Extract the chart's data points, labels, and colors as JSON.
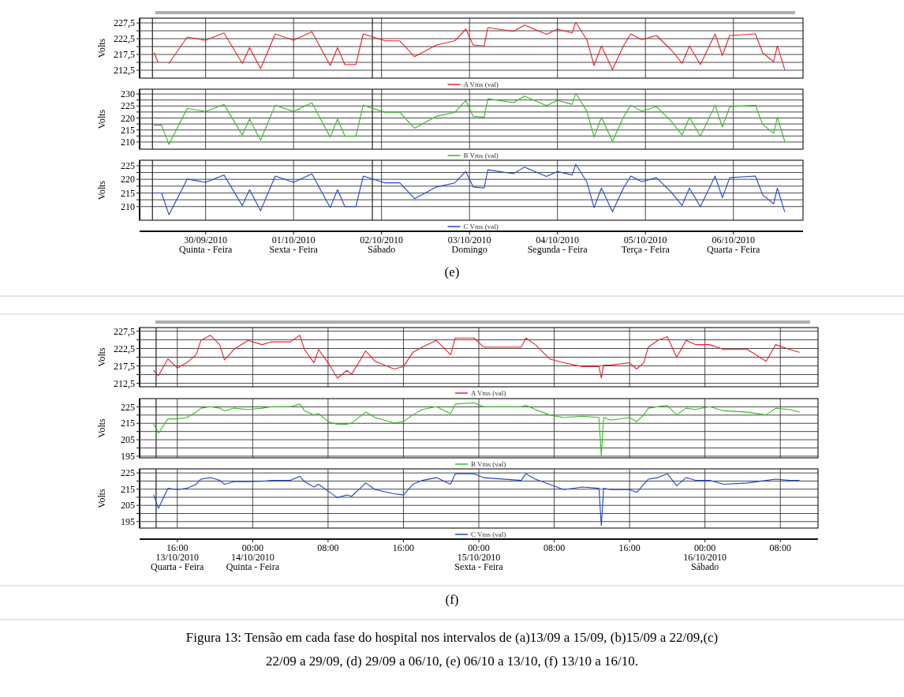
{
  "chart_data": [
    {
      "type": "line",
      "ylabel": "Volts",
      "grid": true,
      "legend": "bottom",
      "tick_labels": "y",
      "series": [
        {
          "name": "A Vms (val)",
          "color": "#e8202a",
          "x": [
            "2010-09-29T10:00",
            "2010-09-29T11:00",
            "2010-09-29T12:00",
            "2010-09-29T14:00",
            "2010-09-29T19:00",
            "2010-09-30T00:00",
            "2010-09-30T05:00",
            "2010-09-30T10:00",
            "2010-09-30T12:00",
            "2010-09-30T15:00",
            "2010-09-30T19:00",
            "2010-10-01T00:00",
            "2010-10-01T05:00",
            "2010-10-01T10:00",
            "2010-10-01T12:00",
            "2010-10-01T14:00",
            "2010-10-01T17:00",
            "2010-10-01T19:00",
            "2010-10-02T01:00",
            "2010-10-02T05:00",
            "2010-10-02T09:00",
            "2010-10-02T15:00",
            "2010-10-02T20:00",
            "2010-10-02T23:00",
            "2010-10-03T01:00",
            "2010-10-03T04:00",
            "2010-10-03T05:00",
            "2010-10-03T12:00",
            "2010-10-03T15:00",
            "2010-10-03T21:00",
            "2010-10-04T00:00",
            "2010-10-04T04:00",
            "2010-10-04T05:00",
            "2010-10-04T08:00",
            "2010-10-04T10:00",
            "2010-10-04T12:00",
            "2010-10-04T15:00",
            "2010-10-04T18:00",
            "2010-10-04T20:00",
            "2010-10-04T23:00",
            "2010-10-05T03:00",
            "2010-10-05T07:00",
            "2010-10-05T10:00",
            "2010-10-05T12:00",
            "2010-10-05T15:00",
            "2010-10-05T19:00",
            "2010-10-05T21:00",
            "2010-10-05T23:00",
            "2010-10-06T06:00",
            "2010-10-06T08:00",
            "2010-10-06T11:00",
            "2010-10-06T12:00",
            "2010-10-06T14:00"
          ],
          "values": [
            218,
            215,
            null,
            214.7,
            223,
            222,
            224.3,
            214.7,
            219.7,
            213,
            224,
            222,
            224.7,
            214,
            219.7,
            214.3,
            214.3,
            224,
            221.8,
            221.8,
            216.8,
            220.5,
            221.8,
            225.5,
            220.5,
            220.2,
            226,
            224.8,
            226.8,
            223.9,
            225.5,
            224.3,
            227.7,
            222.2,
            214,
            220.2,
            212.7,
            220.2,
            224,
            222.2,
            223.5,
            219,
            214.7,
            220.2,
            214.3,
            224,
            217.2,
            223.5,
            224,
            218,
            215.2,
            220.2,
            212.7
          ]
        }
      ],
      "xlim": [
        "2010-09-29T06:00",
        "2010-10-06T19:00"
      ],
      "xticks": [
        {
          "value": "2010-09-30",
          "label": null
        },
        {
          "value": "2010-10-01",
          "label": null
        },
        {
          "value": "2010-10-02",
          "label": null
        },
        {
          "value": "2010-10-03",
          "label": null
        },
        {
          "value": "2010-10-04",
          "label": null
        },
        {
          "value": "2010-10-05",
          "label": null
        },
        {
          "value": "2010-10-06",
          "label": null
        }
      ],
      "ylim": [
        210,
        229
      ],
      "yticks": [
        {
          "value": 212.5,
          "label": "212,5"
        },
        {
          "value": 215,
          "label": null
        },
        {
          "value": 217.5,
          "label": "217,5"
        },
        {
          "value": 220,
          "label": null
        },
        {
          "value": 222.5,
          "label": "222,5"
        },
        {
          "value": 225,
          "label": null
        },
        {
          "value": 227.5,
          "label": "227,5"
        }
      ],
      "ref_lines": [
        {
          "axis": "x",
          "value": "2010-09-29T09:30",
          "color": "#222222"
        },
        {
          "axis": "x",
          "value": "2010-10-01T21:30",
          "color": "#222222"
        }
      ]
    },
    {
      "type": "line",
      "ylabel": "Volts",
      "grid": true,
      "legend": "bottom",
      "tick_labels": "y",
      "x": [
        "2010-09-29T10:00",
        "2010-09-29T12:00",
        "2010-09-29T14:00",
        "2010-09-29T19:00",
        "2010-09-30T00:00",
        "2010-09-30T05:00",
        "2010-09-30T10:00",
        "2010-09-30T12:00",
        "2010-09-30T15:00",
        "2010-09-30T19:00",
        "2010-10-01T00:00",
        "2010-10-01T05:00",
        "2010-10-01T10:00",
        "2010-10-01T12:00",
        "2010-10-01T14:00",
        "2010-10-01T17:00",
        "2010-10-01T19:00",
        "2010-10-02T01:00",
        "2010-10-02T05:00",
        "2010-10-02T09:00",
        "2010-10-02T15:00",
        "2010-10-02T20:00",
        "2010-10-02T23:00",
        "2010-10-03T01:00",
        "2010-10-03T04:00",
        "2010-10-03T05:00",
        "2010-10-03T12:00",
        "2010-10-03T15:00",
        "2010-10-03T21:00",
        "2010-10-04T00:00",
        "2010-10-04T04:00",
        "2010-10-04T05:00",
        "2010-10-04T08:00",
        "2010-10-04T10:00",
        "2010-10-04T12:00",
        "2010-10-04T15:00",
        "2010-10-04T18:00",
        "2010-10-04T20:00",
        "2010-10-04T23:00",
        "2010-10-05T03:00",
        "2010-10-05T07:00",
        "2010-10-05T10:00",
        "2010-10-05T12:00",
        "2010-10-05T15:00",
        "2010-10-05T19:00",
        "2010-10-05T21:00",
        "2010-10-05T23:00",
        "2010-10-06T06:00",
        "2010-10-06T08:00",
        "2010-10-06T11:00",
        "2010-10-06T12:00",
        "2010-10-06T14:00"
      ],
      "series": [
        {
          "name": "B Vms (val)",
          "color": "#33bb22",
          "values": [
            217,
            217,
            209,
            224,
            222.7,
            225.7,
            212.9,
            219.6,
            210.7,
            225.3,
            222.7,
            226.3,
            212,
            219.6,
            212.4,
            212.4,
            225.3,
            222.4,
            222.4,
            215.7,
            220.7,
            222.4,
            227.3,
            220.7,
            220.3,
            228,
            226.4,
            229.1,
            225.2,
            227.3,
            225.7,
            230.3,
            222.9,
            212,
            220.3,
            210.3,
            220.3,
            225.3,
            222.9,
            224.7,
            218.7,
            212.9,
            220.3,
            212.4,
            225.3,
            216.3,
            224.7,
            225.3,
            217.3,
            213.6,
            220.3,
            210.3
          ]
        }
      ],
      "xlim": [
        "2010-09-29T06:00",
        "2010-10-06T19:00"
      ],
      "xticks": [
        {
          "value": "2010-09-30",
          "label": null
        },
        {
          "value": "2010-10-01",
          "label": null
        },
        {
          "value": "2010-10-02",
          "label": null
        },
        {
          "value": "2010-10-03",
          "label": null
        },
        {
          "value": "2010-10-04",
          "label": null
        },
        {
          "value": "2010-10-05",
          "label": null
        },
        {
          "value": "2010-10-06",
          "label": null
        }
      ],
      "ylim": [
        207,
        232
      ],
      "yticks": [
        210,
        {
          "value": 212.5,
          "label": null
        },
        215,
        {
          "value": 217.5,
          "label": null
        },
        220,
        {
          "value": 222.5,
          "label": null
        },
        225,
        {
          "value": 227.5,
          "label": null
        },
        230
      ],
      "ref_lines": [
        {
          "axis": "x",
          "value": "2010-09-29T09:30",
          "color": "#222222"
        },
        {
          "axis": "x",
          "value": "2010-10-01T21:30",
          "color": "#222222"
        }
      ]
    },
    {
      "type": "line",
      "ylabel": "Volts",
      "grid": true,
      "legend": "bottom",
      "x": [
        "2010-09-29T10:00",
        "2010-09-29T12:00",
        "2010-09-29T14:00",
        "2010-09-29T19:00",
        "2010-09-30T00:00",
        "2010-09-30T05:00",
        "2010-09-30T10:00",
        "2010-09-30T12:00",
        "2010-09-30T15:00",
        "2010-09-30T19:00",
        "2010-10-01T00:00",
        "2010-10-01T05:00",
        "2010-10-01T10:00",
        "2010-10-01T12:00",
        "2010-10-01T14:00",
        "2010-10-01T17:00",
        "2010-10-01T19:00",
        "2010-10-02T01:00",
        "2010-10-02T05:00",
        "2010-10-02T09:00",
        "2010-10-02T15:00",
        "2010-10-02T20:00",
        "2010-10-02T23:00",
        "2010-10-03T01:00",
        "2010-10-03T04:00",
        "2010-10-03T05:00",
        "2010-10-03T12:00",
        "2010-10-03T15:00",
        "2010-10-03T21:00",
        "2010-10-04T00:00",
        "2010-10-04T04:00",
        "2010-10-04T05:00",
        "2010-10-04T08:00",
        "2010-10-04T10:00",
        "2010-10-04T12:00",
        "2010-10-04T15:00",
        "2010-10-04T18:00",
        "2010-10-04T20:00",
        "2010-10-04T23:00",
        "2010-10-05T03:00",
        "2010-10-05T07:00",
        "2010-10-05T10:00",
        "2010-10-05T12:00",
        "2010-10-05T15:00",
        "2010-10-05T19:00",
        "2010-10-05T21:00",
        "2010-10-05T23:00",
        "2010-10-06T06:00",
        "2010-10-06T08:00",
        "2010-10-06T11:00",
        "2010-10-06T12:00",
        "2010-10-06T14:00"
      ],
      "series": [
        {
          "name": "C Vms (val)",
          "color": "#2244cc",
          "values": [
            215,
            215,
            207,
            220.1,
            218.9,
            221.6,
            210.4,
            216.2,
            208.5,
            221.2,
            218.9,
            222,
            209.6,
            216.2,
            210,
            210,
            221.2,
            218.7,
            218.7,
            212.9,
            217.2,
            218.7,
            222.9,
            217.2,
            216.8,
            223.5,
            222.1,
            224.5,
            221.1,
            222.9,
            221.6,
            225.5,
            219.1,
            209.6,
            216.8,
            208.1,
            216.8,
            221.2,
            219.1,
            220.6,
            215.4,
            210.4,
            216.8,
            210,
            221.2,
            213.3,
            220.6,
            221.2,
            214.3,
            211,
            216.8,
            208.1
          ]
        }
      ],
      "xlim": [
        "2010-09-29T06:00",
        "2010-10-06T19:00"
      ],
      "xticks": [
        {
          "value": "2010-09-30",
          "label": "30/09/2010\nQuinta - Feira"
        },
        {
          "value": "2010-10-01",
          "label": "01/10/2010\nSexta - Feira"
        },
        {
          "value": "2010-10-02",
          "label": "02/10/2010\nSábado"
        },
        {
          "value": "2010-10-03",
          "label": "03/10/2010\nDomingo"
        },
        {
          "value": "2010-10-04",
          "label": "04/10/2010\nSegunda - Feira"
        },
        {
          "value": "2010-10-05",
          "label": "05/10/2010\nTerça - Feira"
        },
        {
          "value": "2010-10-06",
          "label": "06/10/2010\nQuarta - Feira"
        }
      ],
      "ylim": [
        205,
        227
      ],
      "yticks": [
        210,
        {
          "value": 212.5,
          "label": null
        },
        215,
        {
          "value": 217.5,
          "label": null
        },
        220,
        {
          "value": 222.5,
          "label": null
        },
        225
      ],
      "ref_lines": [
        {
          "axis": "x",
          "value": "2010-09-29T09:30",
          "color": "#222222"
        },
        {
          "axis": "x",
          "value": "2010-10-01T21:30",
          "color": "#222222"
        }
      ],
      "annotations": [
        "(e)"
      ]
    },
    {
      "type": "line",
      "ylabel": "Volts",
      "grid": true,
      "legend": "bottom",
      "tick_labels": "y",
      "x": [
        "2010-10-13T13:30",
        "2010-10-13T14:00",
        "2010-10-13T15:00",
        "2010-10-13T16:00",
        "2010-10-13T17:00",
        "2010-10-13T18:00",
        "2010-10-13T18:30",
        "2010-10-13T19:30",
        "2010-10-13T20:30",
        "2010-10-13T21:00",
        "2010-10-13T22:00",
        "2010-10-13T23:30",
        "2010-10-14T01:00",
        "2010-10-14T02:00",
        "2010-10-14T04:00",
        "2010-10-14T05:00",
        "2010-10-14T05:30",
        "2010-10-14T06:30",
        "2010-10-14T07:00",
        "2010-10-14T08:00",
        "2010-10-14T09:00",
        "2010-10-14T10:00",
        "2010-10-14T10:30",
        "2010-10-14T12:00",
        "2010-10-14T13:00",
        "2010-10-14T15:00",
        "2010-10-14T16:00",
        "2010-10-14T17:00",
        "2010-10-14T18:00",
        "2010-10-14T19:30",
        "2010-10-14T21:00",
        "2010-10-14T21:30",
        "2010-10-14T23:30",
        "2010-10-15T00:30",
        "2010-10-15T04:30",
        "2010-10-15T05:00",
        "2010-10-15T06:00",
        "2010-10-15T07:30",
        "2010-10-15T09:00",
        "2010-10-15T11:00",
        "2010-10-15T12:45",
        "2010-10-15T13:00",
        "2010-10-15T13:15",
        "2010-10-15T14:00",
        "2010-10-15T16:00",
        "2010-10-15T16:45",
        "2010-10-15T17:30",
        "2010-10-15T18:00",
        "2010-10-15T19:00",
        "2010-10-15T20:00",
        "2010-10-15T21:00",
        "2010-10-15T22:00",
        "2010-10-15T23:00",
        "2010-10-16T00:30",
        "2010-10-16T02:00",
        "2010-10-16T04:30",
        "2010-10-16T06:30",
        "2010-10-16T07:30",
        "2010-10-16T09:00",
        "2010-10-16T10:00"
      ],
      "series": [
        {
          "name": "A Vms (val)",
          "color": "#e8202a",
          "values": [
            216.2,
            214.7,
            219.5,
            216.9,
            218.4,
            220.7,
            224.8,
            226.3,
            223.6,
            219.2,
            222.2,
            224.8,
            223.6,
            224.4,
            224.4,
            226.3,
            222.2,
            218.4,
            222.2,
            218.4,
            214,
            216.2,
            215.1,
            221.8,
            218.8,
            216.6,
            217.3,
            221.4,
            222.9,
            224.8,
            220.7,
            225.5,
            225.5,
            222.9,
            222.9,
            225.5,
            223.6,
            219.5,
            218.4,
            217.3,
            217.3,
            214,
            217.7,
            217.7,
            218.4,
            216.6,
            218.4,
            222.9,
            224.8,
            225.9,
            220,
            224.8,
            223.6,
            223.6,
            222.2,
            222.2,
            218.8,
            223.6,
            222.2,
            221.4
          ]
        }
      ],
      "xlim": [
        "2010-10-13T12:00",
        "2010-10-16T12:00"
      ],
      "xticks": [
        {
          "value": "2010-10-13T16:00",
          "label": null
        },
        {
          "value": "2010-10-14T00:00",
          "label": null
        },
        {
          "value": "2010-10-14T08:00",
          "label": null
        },
        {
          "value": "2010-10-14T16:00",
          "label": null
        },
        {
          "value": "2010-10-15T00:00",
          "label": null
        },
        {
          "value": "2010-10-15T08:00",
          "label": null
        },
        {
          "value": "2010-10-15T16:00",
          "label": null
        },
        {
          "value": "2010-10-16T00:00",
          "label": null
        },
        {
          "value": "2010-10-16T08:00",
          "label": null
        }
      ],
      "ylim": [
        211.5,
        228.5
      ],
      "yticks": [
        {
          "value": 212.5,
          "label": "212,5"
        },
        {
          "value": 215,
          "label": null
        },
        {
          "value": 217.5,
          "label": "217,5"
        },
        {
          "value": 220,
          "label": null
        },
        {
          "value": 222.5,
          "label": "222,5"
        },
        {
          "value": 225,
          "label": null
        },
        {
          "value": 227.5,
          "label": "227,5"
        }
      ],
      "ref_lines": [
        {
          "axis": "x",
          "value": "2010-10-13T13:45",
          "color": "#222222"
        }
      ]
    },
    {
      "type": "line",
      "ylabel": "Volts",
      "grid": true,
      "legend": "bottom",
      "tick_labels": "y",
      "x": [
        "2010-10-13T13:30",
        "2010-10-13T14:00",
        "2010-10-13T15:00",
        "2010-10-13T16:00",
        "2010-10-13T17:00",
        "2010-10-13T18:00",
        "2010-10-13T18:30",
        "2010-10-13T19:30",
        "2010-10-13T20:30",
        "2010-10-13T21:00",
        "2010-10-13T22:00",
        "2010-10-13T23:30",
        "2010-10-14T01:00",
        "2010-10-14T02:00",
        "2010-10-14T04:00",
        "2010-10-14T05:00",
        "2010-10-14T05:30",
        "2010-10-14T06:30",
        "2010-10-14T07:00",
        "2010-10-14T08:00",
        "2010-10-14T09:00",
        "2010-10-14T10:00",
        "2010-10-14T10:30",
        "2010-10-14T12:00",
        "2010-10-14T13:00",
        "2010-10-14T15:00",
        "2010-10-14T16:00",
        "2010-10-14T17:00",
        "2010-10-14T18:00",
        "2010-10-14T19:30",
        "2010-10-14T21:00",
        "2010-10-14T21:30",
        "2010-10-14T23:30",
        "2010-10-15T00:30",
        "2010-10-15T04:30",
        "2010-10-15T05:00",
        "2010-10-15T06:00",
        "2010-10-15T07:30",
        "2010-10-15T09:00",
        "2010-10-15T11:00",
        "2010-10-15T12:45",
        "2010-10-15T13:00",
        "2010-10-15T13:15",
        "2010-10-15T14:00",
        "2010-10-15T16:00",
        "2010-10-15T16:45",
        "2010-10-15T17:30",
        "2010-10-15T18:00",
        "2010-10-15T19:00",
        "2010-10-15T20:00",
        "2010-10-15T21:00",
        "2010-10-15T22:00",
        "2010-10-15T23:00",
        "2010-10-16T00:30",
        "2010-10-16T02:00",
        "2010-10-16T04:30",
        "2010-10-16T06:30",
        "2010-10-16T07:30",
        "2010-10-16T09:00",
        "2010-10-16T10:00"
      ],
      "series": [
        {
          "name": "B Vms (val)",
          "color": "#33bb22",
          "values": [
            214.4,
            209,
            217.7,
            217.7,
            218.5,
            221.8,
            224.2,
            225.1,
            224.2,
            222.6,
            224.2,
            223.4,
            224.2,
            225.1,
            225.1,
            226.7,
            222.6,
            220.1,
            220.9,
            216,
            214.4,
            214.4,
            215.2,
            221.8,
            218.5,
            215.2,
            216,
            220.1,
            223.4,
            225.1,
            220.9,
            226.7,
            227.5,
            225.1,
            225.1,
            225.9,
            223.4,
            220.1,
            218.5,
            219.3,
            218.5,
            195.5,
            218.5,
            216.9,
            218.5,
            216,
            220.1,
            224.2,
            225.1,
            225.9,
            220.1,
            224.2,
            223.4,
            225.1,
            222.6,
            221.8,
            220.1,
            224.2,
            223.4,
            221.8
          ]
        }
      ],
      "xlim": [
        "2010-10-13T12:00",
        "2010-10-16T12:00"
      ],
      "xticks": [
        {
          "value": "2010-10-13T16:00",
          "label": null
        },
        {
          "value": "2010-10-14T00:00",
          "label": null
        },
        {
          "value": "2010-10-14T08:00",
          "label": null
        },
        {
          "value": "2010-10-14T16:00",
          "label": null
        },
        {
          "value": "2010-10-15T00:00",
          "label": null
        },
        {
          "value": "2010-10-15T08:00",
          "label": null
        },
        {
          "value": "2010-10-15T16:00",
          "label": null
        },
        {
          "value": "2010-10-16T00:00",
          "label": null
        },
        {
          "value": "2010-10-16T08:00",
          "label": null
        }
      ],
      "ylim": [
        194,
        230
      ],
      "yticks": [
        195,
        {
          "value": 200,
          "label": null
        },
        205,
        {
          "value": 210,
          "label": null
        },
        215,
        {
          "value": 220,
          "label": null
        },
        225
      ],
      "ref_lines": [
        {
          "axis": "x",
          "value": "2010-10-13T13:45",
          "color": "#222222"
        }
      ]
    },
    {
      "type": "line",
      "ylabel": "Volts",
      "grid": true,
      "legend": "bottom",
      "x": [
        "2010-10-13T13:30",
        "2010-10-13T14:00",
        "2010-10-13T15:00",
        "2010-10-13T16:00",
        "2010-10-13T17:00",
        "2010-10-13T18:00",
        "2010-10-13T18:30",
        "2010-10-13T19:30",
        "2010-10-13T20:30",
        "2010-10-13T21:00",
        "2010-10-13T22:00",
        "2010-10-13T23:30",
        "2010-10-14T01:00",
        "2010-10-14T02:00",
        "2010-10-14T04:00",
        "2010-10-14T05:00",
        "2010-10-14T05:30",
        "2010-10-14T06:30",
        "2010-10-14T07:00",
        "2010-10-14T08:00",
        "2010-10-14T09:00",
        "2010-10-14T10:00",
        "2010-10-14T10:30",
        "2010-10-14T12:00",
        "2010-10-14T13:00",
        "2010-10-14T15:00",
        "2010-10-14T16:00",
        "2010-10-14T17:00",
        "2010-10-14T18:00",
        "2010-10-14T19:30",
        "2010-10-14T21:00",
        "2010-10-14T21:30",
        "2010-10-14T23:30",
        "2010-10-15T00:30",
        "2010-10-15T04:30",
        "2010-10-15T05:00",
        "2010-10-15T06:00",
        "2010-10-15T07:30",
        "2010-10-15T09:00",
        "2010-10-15T11:00",
        "2010-10-15T12:45",
        "2010-10-15T13:00",
        "2010-10-15T13:15",
        "2010-10-15T14:00",
        "2010-10-15T16:00",
        "2010-10-15T16:45",
        "2010-10-15T17:30",
        "2010-10-15T18:00",
        "2010-10-15T19:00",
        "2010-10-15T20:00",
        "2010-10-15T21:00",
        "2010-10-15T22:00",
        "2010-10-15T23:00",
        "2010-10-16T00:30",
        "2010-10-16T02:00",
        "2010-10-16T04:30",
        "2010-10-16T06:30",
        "2010-10-16T07:30",
        "2010-10-16T09:00",
        "2010-10-16T10:00"
      ],
      "series": [
        {
          "name": "C Vms (val)",
          "color": "#2244cc",
          "values": [
            211.4,
            203.2,
            215.5,
            214.7,
            215.5,
            218,
            221.2,
            222.1,
            220.4,
            218,
            219.6,
            219.6,
            219.8,
            220.4,
            220.4,
            222.9,
            219.6,
            216.3,
            218,
            213.8,
            209.8,
            211.4,
            210.6,
            218.8,
            214.7,
            212.2,
            211.4,
            218,
            220.4,
            222.1,
            218,
            224.5,
            224.5,
            222.1,
            220.4,
            224.5,
            221.2,
            218,
            214.7,
            216.3,
            215.5,
            192.5,
            215.5,
            214.7,
            214.7,
            213,
            218,
            221.2,
            222.1,
            224.5,
            217.1,
            222.1,
            220.4,
            220.4,
            218,
            218.8,
            220.4,
            221.2,
            220.4,
            220.4
          ]
        }
      ],
      "xlim": [
        "2010-10-13T12:00",
        "2010-10-16T12:00"
      ],
      "xticks": [
        {
          "value": "2010-10-13T16:00",
          "label": "16:00\n13/10/2010\nQuarta - Feira"
        },
        {
          "value": "2010-10-14T00:00",
          "label": "00:00\n14/10/2010\nQuinta - Feira"
        },
        {
          "value": "2010-10-14T08:00",
          "label": "08:00"
        },
        {
          "value": "2010-10-14T16:00",
          "label": "16:00"
        },
        {
          "value": "2010-10-15T00:00",
          "label": "00:00\n15/10/2010\nSexta - Feira"
        },
        {
          "value": "2010-10-15T08:00",
          "label": "08:00"
        },
        {
          "value": "2010-10-15T16:00",
          "label": "16:00"
        },
        {
          "value": "2010-10-16T00:00",
          "label": "00:00\n16/10/2010\nSábado"
        },
        {
          "value": "2010-10-16T08:00",
          "label": "08:00"
        }
      ],
      "ylim": [
        191,
        227.5
      ],
      "yticks": [
        195,
        {
          "value": 200,
          "label": null
        },
        205,
        {
          "value": 210,
          "label": null
        },
        215,
        {
          "value": 220,
          "label": null
        },
        225
      ],
      "ref_lines": [
        {
          "axis": "x",
          "value": "2010-10-13T13:45",
          "color": "#222222"
        }
      ],
      "annotations": [
        "(f)",
        "Figura 13: Tensão em cada fase do hospital nos intervalos de (a)13/09 a 15/09, (b)15/09 a 22/09,(c) 22/09 a 29/09, (d) 29/09 a 06/10, (e) 06/10 a 13/10, (f) 13/10 a 16/10."
      ]
    }
  ]
}
